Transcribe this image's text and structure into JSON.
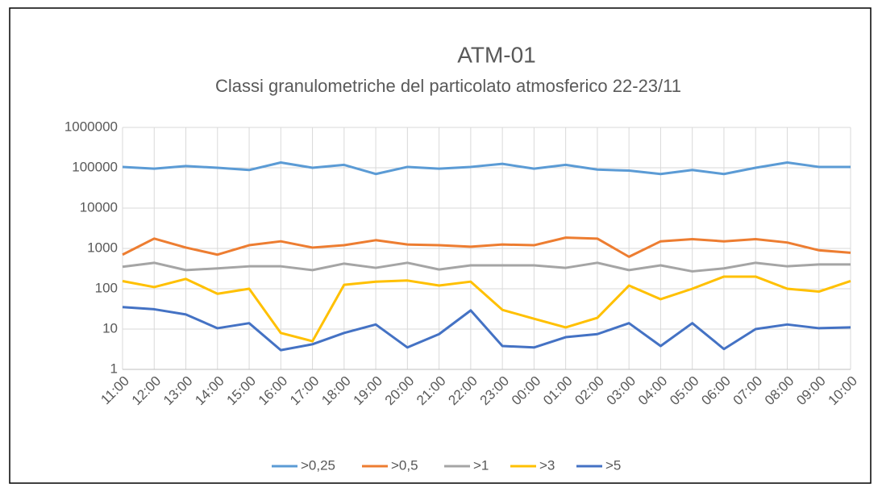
{
  "chart_data": {
    "type": "line",
    "title": "ATM-01",
    "subtitle": "Classi granulometriche del particolato atmosferico 22-23/11",
    "categories": [
      "11:00",
      "12:00",
      "13:00",
      "14:00",
      "15:00",
      "16:00",
      "17:00",
      "18:00",
      "19:00",
      "20:00",
      "21:00",
      "22:00",
      "23:00",
      "00:00",
      "01:00",
      "02:00",
      "03:00",
      "04:00",
      "05:00",
      "06:00",
      "07:00",
      "08:00",
      "09:00",
      "10:00"
    ],
    "series": [
      {
        "name": ">0,25",
        "color": "#5b9bd5",
        "values": [
          105000,
          95000,
          110000,
          100000,
          88000,
          135000,
          100000,
          118000,
          70000,
          105000,
          95000,
          105000,
          125000,
          95000,
          118000,
          90000,
          85000,
          70000,
          88000,
          70000,
          100000,
          135000,
          105000,
          105000
        ]
      },
      {
        "name": ">0,5",
        "color": "#ed7d31",
        "values": [
          700,
          1750,
          1050,
          700,
          1200,
          1500,
          1050,
          1200,
          1600,
          1250,
          1200,
          1100,
          1250,
          1200,
          1850,
          1750,
          620,
          1500,
          1700,
          1500,
          1700,
          1400,
          900,
          780
        ]
      },
      {
        "name": ">1",
        "color": "#a5a5a5",
        "values": [
          350,
          440,
          290,
          320,
          360,
          360,
          290,
          420,
          330,
          440,
          300,
          380,
          380,
          380,
          330,
          440,
          290,
          380,
          270,
          320,
          440,
          360,
          400,
          400
        ]
      },
      {
        "name": ">3",
        "color": "#ffc000",
        "values": [
          155,
          110,
          175,
          75,
          100,
          8,
          5,
          125,
          150,
          160,
          120,
          150,
          30,
          18,
          11,
          19,
          120,
          55,
          100,
          200,
          200,
          100,
          85,
          155
        ]
      },
      {
        "name": ">5",
        "color": "#4472c4",
        "values": [
          35,
          31,
          23,
          10.5,
          14,
          3,
          4.2,
          8,
          13,
          3.5,
          7.5,
          29,
          3.8,
          3.5,
          6.3,
          7.5,
          14,
          3.8,
          14,
          3.2,
          10,
          13,
          10.5,
          11
        ]
      }
    ],
    "ylim": [
      1,
      1000000
    ],
    "yticks": [
      1,
      10,
      100,
      1000,
      10000,
      100000,
      1000000
    ],
    "log_scale": true,
    "grid": true,
    "legend": "bottom"
  }
}
